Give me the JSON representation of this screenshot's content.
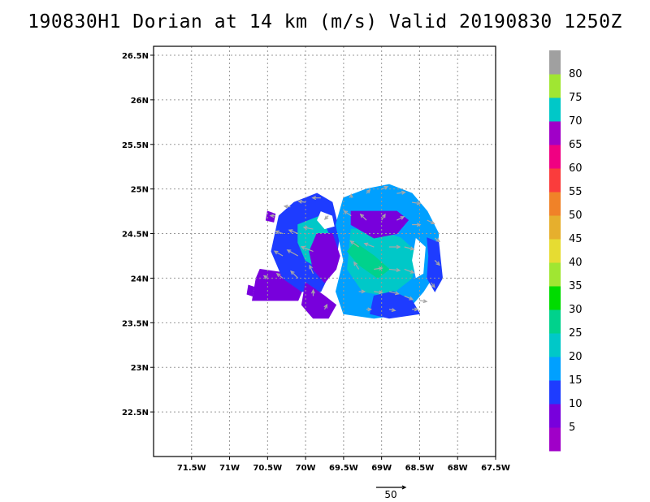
{
  "title": "190830H1 Dorian at 14 km (m/s) Valid 20190830  1250Z",
  "map": {
    "lon_range": [
      -72.0,
      -67.5
    ],
    "lat_range": [
      22.0,
      26.6
    ],
    "x_ticks": [
      {
        "value": -71.5,
        "label": "71.5W"
      },
      {
        "value": -71.0,
        "label": "71W"
      },
      {
        "value": -70.5,
        "label": "70.5W"
      },
      {
        "value": -70.0,
        "label": "70W"
      },
      {
        "value": -69.5,
        "label": "69.5W"
      },
      {
        "value": -69.0,
        "label": "69W"
      },
      {
        "value": -68.5,
        "label": "68.5W"
      },
      {
        "value": -68.0,
        "label": "68W"
      },
      {
        "value": -67.5,
        "label": "67.5W"
      }
    ],
    "y_ticks": [
      {
        "value": 22.5,
        "label": "22.5N"
      },
      {
        "value": 23.0,
        "label": "23N"
      },
      {
        "value": 23.5,
        "label": "23.5N"
      },
      {
        "value": 24.0,
        "label": "24N"
      },
      {
        "value": 24.5,
        "label": "24.5N"
      },
      {
        "value": 25.0,
        "label": "25N"
      },
      {
        "value": 25.5,
        "label": "25.5N"
      },
      {
        "value": 26.0,
        "label": "26N"
      },
      {
        "value": 26.5,
        "label": "26.5N"
      }
    ],
    "wind_regions": [
      {
        "name": "west-purple-block",
        "speed": 7,
        "points": [
          [
            -70.6,
            24.1
          ],
          [
            -70.2,
            24.05
          ],
          [
            -70.05,
            23.85
          ],
          [
            -70.1,
            23.75
          ],
          [
            -70.7,
            23.75
          ],
          [
            -70.65,
            24.0
          ]
        ]
      },
      {
        "name": "west-blue-body",
        "speed": 14,
        "points": [
          [
            -70.15,
            24.85
          ],
          [
            -69.85,
            24.95
          ],
          [
            -69.65,
            24.85
          ],
          [
            -69.55,
            24.5
          ],
          [
            -69.6,
            24.2
          ],
          [
            -69.8,
            23.85
          ],
          [
            -70.05,
            23.85
          ],
          [
            -70.3,
            24.0
          ],
          [
            -70.45,
            24.3
          ],
          [
            -70.35,
            24.7
          ]
        ]
      },
      {
        "name": "west-cyan-core",
        "speed": 20,
        "points": [
          [
            -70.1,
            24.6
          ],
          [
            -69.8,
            24.7
          ],
          [
            -69.65,
            24.4
          ],
          [
            -69.8,
            24.1
          ],
          [
            -70.0,
            24.2
          ],
          [
            -70.1,
            24.4
          ]
        ]
      },
      {
        "name": "west-small-patch",
        "speed": 7,
        "points": [
          [
            -70.5,
            24.75
          ],
          [
            -70.4,
            24.72
          ],
          [
            -70.42,
            24.63
          ],
          [
            -70.52,
            24.65
          ]
        ]
      },
      {
        "name": "center-purple",
        "speed": 7,
        "points": [
          [
            -69.85,
            24.5
          ],
          [
            -69.65,
            24.5
          ],
          [
            -69.55,
            24.25
          ],
          [
            -69.6,
            24.1
          ],
          [
            -69.75,
            23.95
          ],
          [
            -69.9,
            24.1
          ],
          [
            -69.95,
            24.3
          ]
        ]
      },
      {
        "name": "south-purple",
        "speed": 7,
        "points": [
          [
            -70.0,
            23.95
          ],
          [
            -69.75,
            23.8
          ],
          [
            -69.6,
            23.7
          ],
          [
            -69.7,
            23.55
          ],
          [
            -69.9,
            23.55
          ],
          [
            -70.05,
            23.7
          ]
        ]
      },
      {
        "name": "northeast-blue-body",
        "speed": 17,
        "points": [
          [
            -69.5,
            24.9
          ],
          [
            -69.2,
            25.0
          ],
          [
            -68.9,
            25.05
          ],
          [
            -68.6,
            24.95
          ],
          [
            -68.4,
            24.75
          ],
          [
            -68.25,
            24.5
          ],
          [
            -68.3,
            24.05
          ],
          [
            -68.45,
            23.85
          ],
          [
            -68.7,
            23.6
          ],
          [
            -69.1,
            23.55
          ],
          [
            -69.5,
            23.6
          ],
          [
            -69.6,
            23.85
          ],
          [
            -69.5,
            24.2
          ],
          [
            -69.6,
            24.6
          ]
        ]
      },
      {
        "name": "northeast-cyan-core",
        "speed": 22,
        "points": [
          [
            -69.4,
            24.55
          ],
          [
            -69.1,
            24.55
          ],
          [
            -68.75,
            24.45
          ],
          [
            -68.55,
            24.3
          ],
          [
            -68.6,
            24.0
          ],
          [
            -68.9,
            23.8
          ],
          [
            -69.25,
            23.85
          ],
          [
            -69.45,
            24.1
          ]
        ]
      },
      {
        "name": "center-green-streak",
        "speed": 27,
        "points": [
          [
            -69.35,
            24.4
          ],
          [
            -69.1,
            24.25
          ],
          [
            -68.9,
            24.1
          ],
          [
            -69.05,
            24.0
          ],
          [
            -69.3,
            24.15
          ],
          [
            -69.45,
            24.3
          ]
        ]
      },
      {
        "name": "north-purple-arc",
        "speed": 7,
        "points": [
          [
            -69.4,
            24.6
          ],
          [
            -69.1,
            24.45
          ],
          [
            -68.8,
            24.5
          ],
          [
            -68.65,
            24.65
          ],
          [
            -68.8,
            24.75
          ],
          [
            -69.15,
            24.75
          ],
          [
            -69.4,
            24.75
          ]
        ]
      },
      {
        "name": "east-blue-arc",
        "speed": 12,
        "points": [
          [
            -68.4,
            24.45
          ],
          [
            -68.25,
            24.4
          ],
          [
            -68.2,
            24.0
          ],
          [
            -68.3,
            23.85
          ],
          [
            -68.4,
            24.0
          ],
          [
            -68.38,
            24.25
          ]
        ]
      },
      {
        "name": "southeast-blue",
        "speed": 11,
        "points": [
          [
            -69.1,
            23.8
          ],
          [
            -68.85,
            23.85
          ],
          [
            -68.6,
            23.75
          ],
          [
            -68.5,
            23.6
          ],
          [
            -68.9,
            23.55
          ],
          [
            -69.15,
            23.6
          ]
        ]
      },
      {
        "name": "far-west-purple",
        "speed": 7,
        "points": [
          [
            -70.75,
            23.92
          ],
          [
            -70.68,
            23.9
          ],
          [
            -70.7,
            23.8
          ],
          [
            -70.77,
            23.82
          ]
        ]
      }
    ],
    "data_holes": [
      {
        "name": "hole-north",
        "points": [
          [
            -69.8,
            24.75
          ],
          [
            -69.65,
            24.7
          ],
          [
            -69.62,
            24.58
          ],
          [
            -69.75,
            24.55
          ],
          [
            -69.85,
            24.65
          ]
        ]
      },
      {
        "name": "hole-east-notch",
        "points": [
          [
            -68.55,
            24.45
          ],
          [
            -68.42,
            24.35
          ],
          [
            -68.45,
            24.05
          ],
          [
            -68.55,
            24.0
          ],
          [
            -68.6,
            24.2
          ]
        ]
      }
    ],
    "wind_vectors": [
      {
        "lon": -70.4,
        "lat": 24.7,
        "u": -8,
        "v": 0
      },
      {
        "lon": -70.2,
        "lat": 24.8,
        "u": -10,
        "v": 1
      },
      {
        "lon": -70.0,
        "lat": 24.85,
        "u": -12,
        "v": 2
      },
      {
        "lon": -69.8,
        "lat": 24.9,
        "u": -14,
        "v": 0
      },
      {
        "lon": -70.3,
        "lat": 24.5,
        "u": -12,
        "v": 4
      },
      {
        "lon": -70.1,
        "lat": 24.5,
        "u": -15,
        "v": 6
      },
      {
        "lon": -69.9,
        "lat": 24.55,
        "u": -16,
        "v": 3
      },
      {
        "lon": -70.3,
        "lat": 24.25,
        "u": -14,
        "v": 8
      },
      {
        "lon": -70.1,
        "lat": 24.25,
        "u": -18,
        "v": 10
      },
      {
        "lon": -69.9,
        "lat": 24.3,
        "u": -20,
        "v": 8
      },
      {
        "lon": -70.5,
        "lat": 24.0,
        "u": -6,
        "v": 4
      },
      {
        "lon": -70.3,
        "lat": 24.0,
        "u": -10,
        "v": 8
      },
      {
        "lon": -70.1,
        "lat": 24.0,
        "u": -12,
        "v": 12
      },
      {
        "lon": -69.9,
        "lat": 24.05,
        "u": -6,
        "v": 14
      },
      {
        "lon": -69.9,
        "lat": 23.8,
        "u": 0,
        "v": 10
      },
      {
        "lon": -69.75,
        "lat": 23.65,
        "u": 4,
        "v": 8
      },
      {
        "lon": -69.7,
        "lat": 24.7,
        "u": -6,
        "v": -6
      },
      {
        "lon": -69.4,
        "lat": 24.9,
        "u": 0,
        "v": 6
      },
      {
        "lon": -69.2,
        "lat": 24.95,
        "u": 6,
        "v": 6
      },
      {
        "lon": -69.0,
        "lat": 25.0,
        "u": 10,
        "v": 4
      },
      {
        "lon": -68.8,
        "lat": 24.95,
        "u": 14,
        "v": 2
      },
      {
        "lon": -68.6,
        "lat": 24.85,
        "u": 14,
        "v": -2
      },
      {
        "lon": -68.4,
        "lat": 24.65,
        "u": 12,
        "v": -6
      },
      {
        "lon": -69.4,
        "lat": 24.7,
        "u": -12,
        "v": 8
      },
      {
        "lon": -69.2,
        "lat": 24.65,
        "u": -10,
        "v": 10
      },
      {
        "lon": -69.0,
        "lat": 24.65,
        "u": 6,
        "v": 10
      },
      {
        "lon": -68.8,
        "lat": 24.65,
        "u": 12,
        "v": 6
      },
      {
        "lon": -68.6,
        "lat": 24.6,
        "u": 14,
        "v": 0
      },
      {
        "lon": -69.3,
        "lat": 24.35,
        "u": -14,
        "v": 10
      },
      {
        "lon": -69.1,
        "lat": 24.35,
        "u": -16,
        "v": 6
      },
      {
        "lon": -68.9,
        "lat": 24.35,
        "u": 18,
        "v": 0
      },
      {
        "lon": -68.7,
        "lat": 24.35,
        "u": 16,
        "v": -4
      },
      {
        "lon": -69.3,
        "lat": 24.1,
        "u": -8,
        "v": 12
      },
      {
        "lon": -69.1,
        "lat": 24.1,
        "u": 14,
        "v": 2
      },
      {
        "lon": -68.9,
        "lat": 24.1,
        "u": 18,
        "v": -2
      },
      {
        "lon": -68.7,
        "lat": 24.1,
        "u": 16,
        "v": -6
      },
      {
        "lon": -69.3,
        "lat": 23.85,
        "u": 10,
        "v": 0
      },
      {
        "lon": -69.1,
        "lat": 23.85,
        "u": 14,
        "v": -2
      },
      {
        "lon": -68.9,
        "lat": 23.85,
        "u": 16,
        "v": -4
      },
      {
        "lon": -68.7,
        "lat": 23.8,
        "u": 14,
        "v": -6
      },
      {
        "lon": -68.5,
        "lat": 23.75,
        "u": 12,
        "v": -2
      },
      {
        "lon": -69.2,
        "lat": 23.65,
        "u": 8,
        "v": 0
      },
      {
        "lon": -68.9,
        "lat": 23.65,
        "u": 10,
        "v": -2
      },
      {
        "lon": -68.6,
        "lat": 23.65,
        "u": 10,
        "v": 0
      },
      {
        "lon": -68.3,
        "lat": 24.2,
        "u": 8,
        "v": -8
      },
      {
        "lon": -68.3,
        "lat": 24.45,
        "u": 8,
        "v": -6
      },
      {
        "lon": -68.35,
        "lat": 23.95,
        "u": 6,
        "v": -8
      }
    ],
    "vector_scale": {
      "speed": 50,
      "label": "50"
    }
  },
  "colorbar": {
    "colors": [
      "#a000c8",
      "#7800dc",
      "#1e3cff",
      "#00a0ff",
      "#00c8c8",
      "#00d28c",
      "#00dc00",
      "#a0e632",
      "#e6dc32",
      "#e6af2d",
      "#f08228",
      "#fa3c3c",
      "#f00082",
      "#a000c8",
      "#00c8c8",
      "#a0e632",
      "#a0a0a0"
    ],
    "bounds": [
      0,
      5,
      10,
      15,
      20,
      25,
      30,
      35,
      40,
      45,
      50,
      55,
      60,
      65,
      70,
      75,
      80,
      85
    ],
    "labels": [
      "5",
      "10",
      "15",
      "20",
      "25",
      "30",
      "35",
      "40",
      "45",
      "50",
      "55",
      "60",
      "65",
      "70",
      "75",
      "80"
    ]
  }
}
